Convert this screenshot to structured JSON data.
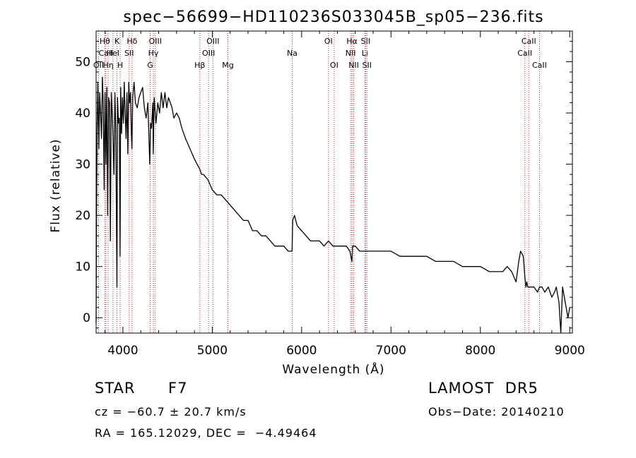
{
  "chart_data": {
    "type": "line",
    "title": "spec−56699−HD110236S033045B_sp05−236.fits",
    "xlabel": "Wavelength (Å)",
    "ylabel": "Flux (relative)",
    "xlim": [
      3700,
      9030
    ],
    "ylim": [
      -3,
      56
    ],
    "xticks": [
      4000,
      5000,
      6000,
      7000,
      8000,
      9000
    ],
    "yticks": [
      0,
      10,
      20,
      30,
      40,
      50
    ],
    "grid": false,
    "series": [
      {
        "x": [
          3700,
          3705,
          3712,
          3720,
          3730,
          3740,
          3750,
          3760,
          3770,
          3780,
          3790,
          3800,
          3810,
          3820,
          3830,
          3840,
          3850,
          3860,
          3870,
          3880,
          3890,
          3900,
          3910,
          3920,
          3933,
          3940,
          3950,
          3960,
          3968,
          3975,
          3985,
          3995,
          4005,
          4015,
          4025,
          4035,
          4045,
          4055,
          4065,
          4075,
          4085,
          4095,
          4101,
          4110,
          4125,
          4140,
          4160,
          4180,
          4200,
          4220,
          4240,
          4260,
          4280,
          4300,
          4310,
          4320,
          4335,
          4340,
          4350,
          4370,
          4390,
          4410,
          4430,
          4450,
          4470,
          4490,
          4510,
          4530,
          4550,
          4570,
          4600,
          4630,
          4660,
          4700,
          4750,
          4800,
          4830,
          4861,
          4880,
          4900,
          4950,
          5000,
          5050,
          5100,
          5150,
          5200,
          5250,
          5300,
          5350,
          5400,
          5450,
          5500,
          5550,
          5600,
          5650,
          5700,
          5750,
          5800,
          5850,
          5880,
          5893,
          5900,
          5920,
          5950,
          6000,
          6050,
          6100,
          6150,
          6200,
          6250,
          6300,
          6350,
          6400,
          6450,
          6500,
          6540,
          6563,
          6570,
          6600,
          6650,
          6700,
          6750,
          6800,
          6850,
          6900,
          7000,
          7100,
          7200,
          7300,
          7400,
          7500,
          7550,
          7600,
          7650,
          7700,
          7800,
          7900,
          8000,
          8100,
          8150,
          8200,
          8250,
          8300,
          8350,
          8400,
          8430,
          8450,
          8480,
          8498,
          8510,
          8520,
          8530,
          8542,
          8560,
          8600,
          8640,
          8662,
          8690,
          8720,
          8760,
          8800,
          8830,
          8850,
          8880,
          8900,
          8920,
          8950,
          8980,
          9000
        ],
        "y": [
          -1,
          20,
          38,
          46,
          33,
          44,
          40,
          35,
          47,
          42,
          25,
          44,
          30,
          45,
          20,
          43,
          42,
          15,
          44,
          40,
          35,
          28,
          44,
          37,
          6,
          43,
          38,
          39,
          12,
          45,
          36,
          43,
          38,
          46,
          40,
          35,
          44,
          32,
          46,
          42,
          44,
          36,
          33,
          43,
          46,
          42,
          41,
          43,
          44,
          45,
          41,
          39,
          42,
          30,
          38,
          37,
          42,
          32,
          43,
          38,
          42,
          40,
          44,
          41,
          44,
          41,
          43,
          42,
          41,
          39,
          40,
          39,
          37,
          35,
          33,
          31,
          30,
          29,
          28,
          28,
          27,
          25,
          24,
          24,
          23,
          22,
          21,
          20,
          19,
          19,
          17,
          17,
          16,
          16,
          15,
          14,
          14,
          14,
          13,
          13,
          13,
          19,
          20,
          18,
          17,
          16,
          15,
          15,
          15,
          14,
          15,
          14,
          14,
          14,
          14,
          13,
          11,
          14,
          14,
          13,
          13,
          13,
          13,
          13,
          13,
          13,
          12,
          12,
          12,
          12,
          11,
          11,
          11,
          11,
          11,
          10,
          10,
          10,
          9,
          9,
          9,
          9,
          10,
          9,
          7,
          11,
          13,
          12,
          8,
          6,
          7,
          6,
          6,
          6,
          6,
          5,
          6,
          6,
          5,
          6,
          4,
          5,
          6,
          3,
          -3,
          6,
          3,
          0,
          2
        ]
      }
    ],
    "line_markers": [
      {
        "label": "Hθ",
        "x": 3798,
        "row": 1
      },
      {
        "label": "CaII",
        "x": 3810,
        "row": 2
      },
      {
        "label": "OII",
        "x": 3727,
        "row": 3
      },
      {
        "label": "Hη",
        "x": 3835,
        "row": 3
      },
      {
        "label": "K",
        "x": 3934,
        "row": 1
      },
      {
        "label": "HeI",
        "x": 3889,
        "row": 2
      },
      {
        "label": "H",
        "x": 3969,
        "row": 3
      },
      {
        "label": "Hδ",
        "x": 4102,
        "row": 1
      },
      {
        "label": "SII",
        "x": 4070,
        "row": 2
      },
      {
        "label": "OIII",
        "x": 4363,
        "row": 1
      },
      {
        "label": "Hγ",
        "x": 4341,
        "row": 2
      },
      {
        "label": "G",
        "x": 4305,
        "row": 3
      },
      {
        "label": "OIII",
        "x": 5007,
        "row": 1
      },
      {
        "label": "OIII",
        "x": 4959,
        "row": 2
      },
      {
        "label": "Hβ",
        "x": 4861,
        "row": 3
      },
      {
        "label": "Mg",
        "x": 5175,
        "row": 3
      },
      {
        "label": "Na",
        "x": 5894,
        "row": 2
      },
      {
        "label": "OI",
        "x": 6300,
        "row": 1
      },
      {
        "label": "OI",
        "x": 6364,
        "row": 3
      },
      {
        "label": "Hα",
        "x": 6563,
        "row": 1
      },
      {
        "label": "NII",
        "x": 6548,
        "row": 2
      },
      {
        "label": "NII",
        "x": 6583,
        "row": 3
      },
      {
        "label": "SII",
        "x": 6716,
        "row": 1
      },
      {
        "label": "Li",
        "x": 6708,
        "row": 2
      },
      {
        "label": "SII",
        "x": 6731,
        "row": 3
      },
      {
        "label": "CaII",
        "x": 8542,
        "row": 1
      },
      {
        "label": "CaII",
        "x": 8498,
        "row": 2
      },
      {
        "label": "CaII",
        "x": 8662,
        "row": 3
      }
    ],
    "marker_color": "#b03030"
  },
  "info": {
    "class_label": "STAR",
    "subclass": "F7",
    "survey": "LAMOST  DR5",
    "cz": "cz = −60.7 ± 20.7 km/s",
    "obs_date": "Obs−Date: 20140210",
    "coords": "RA = 165.12029, DEC =  −4.49464"
  }
}
